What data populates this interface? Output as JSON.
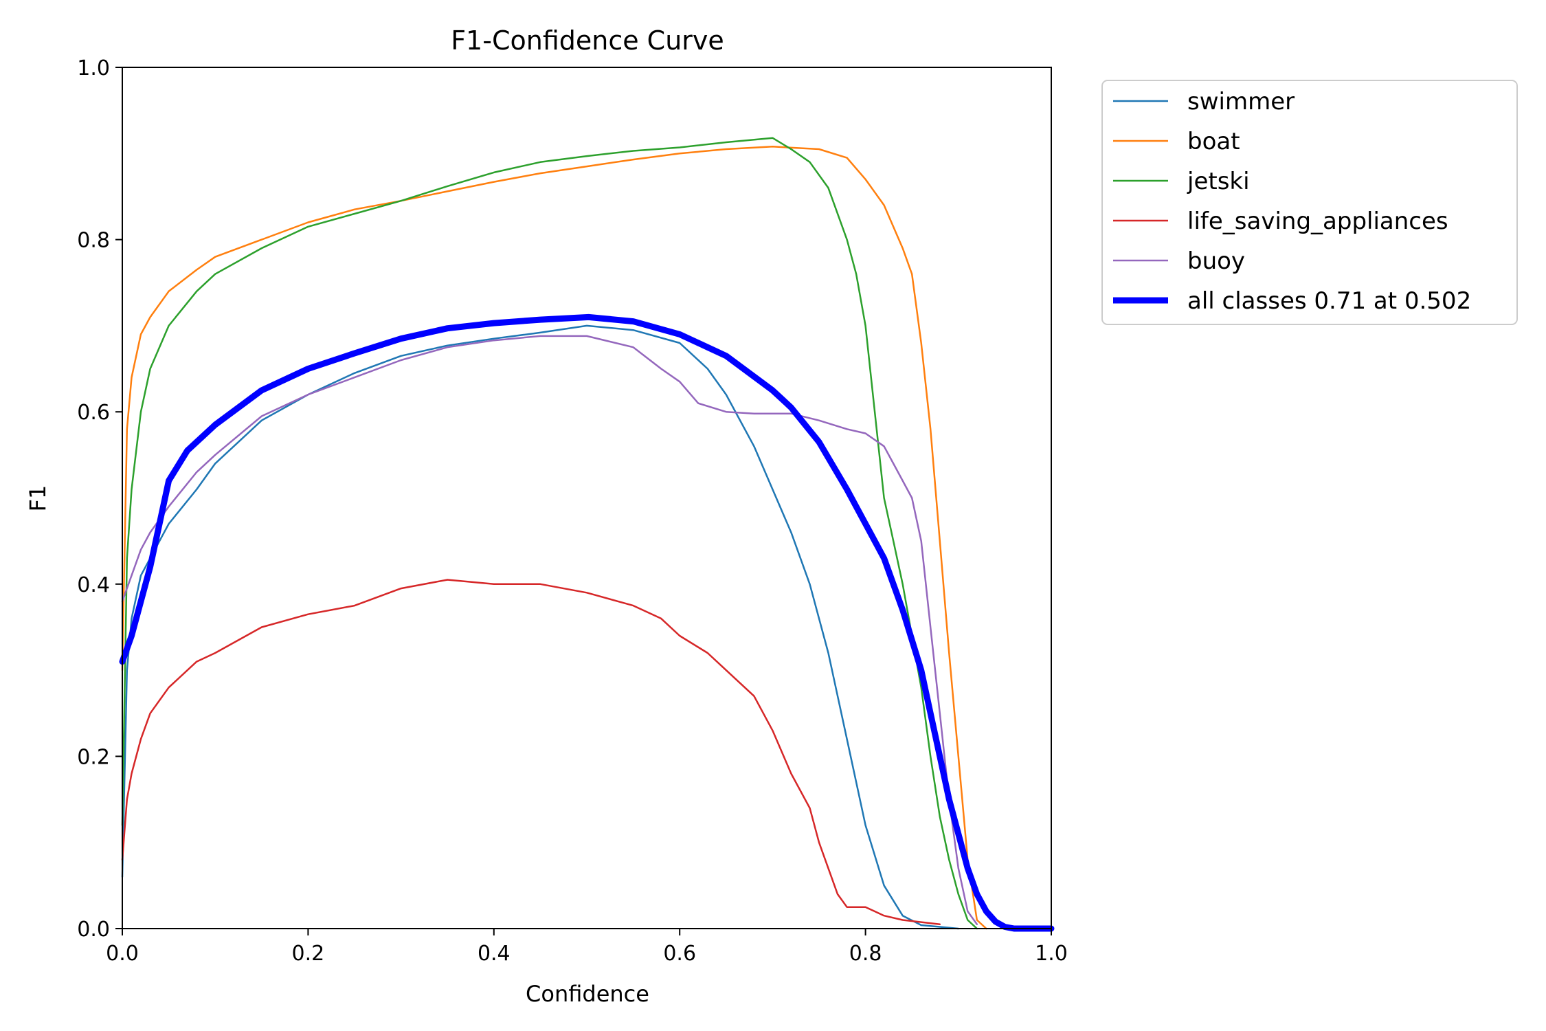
{
  "chart_data": {
    "type": "line",
    "title": "F1-Confidence Curve",
    "xlabel": "Confidence",
    "ylabel": "F1",
    "xlim": [
      0.0,
      1.0
    ],
    "ylim": [
      0.0,
      1.0
    ],
    "x_ticks": [
      "0.0",
      "0.2",
      "0.4",
      "0.6",
      "0.8",
      "1.0"
    ],
    "y_ticks": [
      "0.0",
      "0.2",
      "0.4",
      "0.6",
      "0.8",
      "1.0"
    ],
    "grid": false,
    "legend_position": "outside-top-right",
    "series": [
      {
        "name": "swimmer",
        "color": "#1f77b4",
        "width": "thin",
        "points": [
          [
            0.0,
            0.06
          ],
          [
            0.005,
            0.3
          ],
          [
            0.01,
            0.36
          ],
          [
            0.02,
            0.41
          ],
          [
            0.03,
            0.43
          ],
          [
            0.05,
            0.47
          ],
          [
            0.08,
            0.51
          ],
          [
            0.1,
            0.54
          ],
          [
            0.15,
            0.59
          ],
          [
            0.2,
            0.62
          ],
          [
            0.25,
            0.645
          ],
          [
            0.3,
            0.665
          ],
          [
            0.35,
            0.677
          ],
          [
            0.4,
            0.685
          ],
          [
            0.45,
            0.692
          ],
          [
            0.5,
            0.7
          ],
          [
            0.55,
            0.695
          ],
          [
            0.6,
            0.68
          ],
          [
            0.63,
            0.65
          ],
          [
            0.65,
            0.62
          ],
          [
            0.68,
            0.56
          ],
          [
            0.7,
            0.51
          ],
          [
            0.72,
            0.46
          ],
          [
            0.74,
            0.4
          ],
          [
            0.76,
            0.32
          ],
          [
            0.78,
            0.22
          ],
          [
            0.8,
            0.12
          ],
          [
            0.82,
            0.05
          ],
          [
            0.84,
            0.015
          ],
          [
            0.86,
            0.004
          ],
          [
            0.9,
            0.0
          ]
        ]
      },
      {
        "name": "boat",
        "color": "#ff7f0e",
        "width": "thin",
        "points": [
          [
            0.0,
            0.3
          ],
          [
            0.005,
            0.58
          ],
          [
            0.01,
            0.64
          ],
          [
            0.02,
            0.69
          ],
          [
            0.03,
            0.71
          ],
          [
            0.05,
            0.74
          ],
          [
            0.08,
            0.765
          ],
          [
            0.1,
            0.78
          ],
          [
            0.15,
            0.8
          ],
          [
            0.2,
            0.82
          ],
          [
            0.25,
            0.835
          ],
          [
            0.3,
            0.845
          ],
          [
            0.35,
            0.856
          ],
          [
            0.4,
            0.867
          ],
          [
            0.45,
            0.877
          ],
          [
            0.5,
            0.885
          ],
          [
            0.55,
            0.893
          ],
          [
            0.6,
            0.9
          ],
          [
            0.65,
            0.905
          ],
          [
            0.7,
            0.908
          ],
          [
            0.75,
            0.905
          ],
          [
            0.78,
            0.895
          ],
          [
            0.8,
            0.87
          ],
          [
            0.82,
            0.84
          ],
          [
            0.84,
            0.79
          ],
          [
            0.85,
            0.76
          ],
          [
            0.86,
            0.68
          ],
          [
            0.87,
            0.58
          ],
          [
            0.88,
            0.45
          ],
          [
            0.89,
            0.32
          ],
          [
            0.9,
            0.2
          ],
          [
            0.91,
            0.08
          ],
          [
            0.92,
            0.01
          ],
          [
            0.93,
            0.0
          ]
        ]
      },
      {
        "name": "jetski",
        "color": "#2ca02c",
        "width": "thin",
        "points": [
          [
            0.0,
            0.12
          ],
          [
            0.005,
            0.43
          ],
          [
            0.01,
            0.51
          ],
          [
            0.02,
            0.6
          ],
          [
            0.03,
            0.65
          ],
          [
            0.05,
            0.7
          ],
          [
            0.08,
            0.74
          ],
          [
            0.1,
            0.76
          ],
          [
            0.15,
            0.79
          ],
          [
            0.2,
            0.815
          ],
          [
            0.25,
            0.83
          ],
          [
            0.3,
            0.845
          ],
          [
            0.35,
            0.862
          ],
          [
            0.4,
            0.878
          ],
          [
            0.45,
            0.89
          ],
          [
            0.5,
            0.897
          ],
          [
            0.55,
            0.903
          ],
          [
            0.6,
            0.907
          ],
          [
            0.65,
            0.913
          ],
          [
            0.7,
            0.918
          ],
          [
            0.72,
            0.905
          ],
          [
            0.74,
            0.89
          ],
          [
            0.76,
            0.86
          ],
          [
            0.78,
            0.8
          ],
          [
            0.79,
            0.76
          ],
          [
            0.8,
            0.7
          ],
          [
            0.81,
            0.6
          ],
          [
            0.82,
            0.5
          ],
          [
            0.83,
            0.45
          ],
          [
            0.84,
            0.4
          ],
          [
            0.85,
            0.34
          ],
          [
            0.86,
            0.28
          ],
          [
            0.87,
            0.2
          ],
          [
            0.88,
            0.13
          ],
          [
            0.89,
            0.08
          ],
          [
            0.9,
            0.04
          ],
          [
            0.91,
            0.01
          ],
          [
            0.92,
            0.0
          ]
        ]
      },
      {
        "name": "life_saving_appliances",
        "color": "#d62728",
        "width": "thin",
        "points": [
          [
            0.0,
            0.08
          ],
          [
            0.005,
            0.15
          ],
          [
            0.01,
            0.18
          ],
          [
            0.02,
            0.22
          ],
          [
            0.03,
            0.25
          ],
          [
            0.05,
            0.28
          ],
          [
            0.08,
            0.31
          ],
          [
            0.1,
            0.32
          ],
          [
            0.15,
            0.35
          ],
          [
            0.2,
            0.365
          ],
          [
            0.25,
            0.375
          ],
          [
            0.3,
            0.395
          ],
          [
            0.35,
            0.405
          ],
          [
            0.4,
            0.4
          ],
          [
            0.45,
            0.4
          ],
          [
            0.5,
            0.39
          ],
          [
            0.55,
            0.375
          ],
          [
            0.58,
            0.36
          ],
          [
            0.6,
            0.34
          ],
          [
            0.63,
            0.32
          ],
          [
            0.65,
            0.3
          ],
          [
            0.68,
            0.27
          ],
          [
            0.7,
            0.23
          ],
          [
            0.72,
            0.18
          ],
          [
            0.74,
            0.14
          ],
          [
            0.75,
            0.1
          ],
          [
            0.76,
            0.07
          ],
          [
            0.77,
            0.04
          ],
          [
            0.78,
            0.025
          ],
          [
            0.8,
            0.025
          ],
          [
            0.82,
            0.015
          ],
          [
            0.84,
            0.01
          ],
          [
            0.88,
            0.005
          ]
        ]
      },
      {
        "name": "buoy",
        "color": "#9467bd",
        "width": "thin",
        "points": [
          [
            0.0,
            0.38
          ],
          [
            0.01,
            0.41
          ],
          [
            0.02,
            0.44
          ],
          [
            0.03,
            0.46
          ],
          [
            0.05,
            0.49
          ],
          [
            0.08,
            0.53
          ],
          [
            0.1,
            0.55
          ],
          [
            0.15,
            0.595
          ],
          [
            0.2,
            0.62
          ],
          [
            0.25,
            0.64
          ],
          [
            0.3,
            0.66
          ],
          [
            0.35,
            0.675
          ],
          [
            0.4,
            0.683
          ],
          [
            0.45,
            0.688
          ],
          [
            0.5,
            0.688
          ],
          [
            0.55,
            0.675
          ],
          [
            0.58,
            0.65
          ],
          [
            0.6,
            0.635
          ],
          [
            0.62,
            0.61
          ],
          [
            0.65,
            0.6
          ],
          [
            0.68,
            0.598
          ],
          [
            0.72,
            0.598
          ],
          [
            0.75,
            0.59
          ],
          [
            0.78,
            0.58
          ],
          [
            0.8,
            0.575
          ],
          [
            0.82,
            0.56
          ],
          [
            0.83,
            0.54
          ],
          [
            0.84,
            0.52
          ],
          [
            0.85,
            0.5
          ],
          [
            0.86,
            0.45
          ],
          [
            0.87,
            0.35
          ],
          [
            0.88,
            0.25
          ],
          [
            0.89,
            0.15
          ],
          [
            0.9,
            0.07
          ],
          [
            0.91,
            0.02
          ],
          [
            0.92,
            0.005
          ]
        ]
      },
      {
        "name": "all classes 0.71 at 0.502",
        "color": "#0000ff",
        "width": "thick",
        "points": [
          [
            0.0,
            0.31
          ],
          [
            0.01,
            0.34
          ],
          [
            0.02,
            0.38
          ],
          [
            0.03,
            0.42
          ],
          [
            0.04,
            0.47
          ],
          [
            0.05,
            0.52
          ],
          [
            0.07,
            0.555
          ],
          [
            0.1,
            0.585
          ],
          [
            0.15,
            0.625
          ],
          [
            0.2,
            0.65
          ],
          [
            0.25,
            0.668
          ],
          [
            0.3,
            0.685
          ],
          [
            0.35,
            0.697
          ],
          [
            0.4,
            0.703
          ],
          [
            0.45,
            0.707
          ],
          [
            0.502,
            0.71
          ],
          [
            0.55,
            0.705
          ],
          [
            0.6,
            0.69
          ],
          [
            0.65,
            0.665
          ],
          [
            0.7,
            0.625
          ],
          [
            0.72,
            0.605
          ],
          [
            0.75,
            0.565
          ],
          [
            0.78,
            0.51
          ],
          [
            0.8,
            0.47
          ],
          [
            0.82,
            0.43
          ],
          [
            0.84,
            0.37
          ],
          [
            0.86,
            0.3
          ],
          [
            0.87,
            0.25
          ],
          [
            0.88,
            0.2
          ],
          [
            0.89,
            0.15
          ],
          [
            0.9,
            0.11
          ],
          [
            0.91,
            0.07
          ],
          [
            0.92,
            0.04
          ],
          [
            0.93,
            0.02
          ],
          [
            0.94,
            0.008
          ],
          [
            0.95,
            0.002
          ],
          [
            0.96,
            0.0
          ],
          [
            1.0,
            0.0
          ]
        ]
      }
    ]
  }
}
